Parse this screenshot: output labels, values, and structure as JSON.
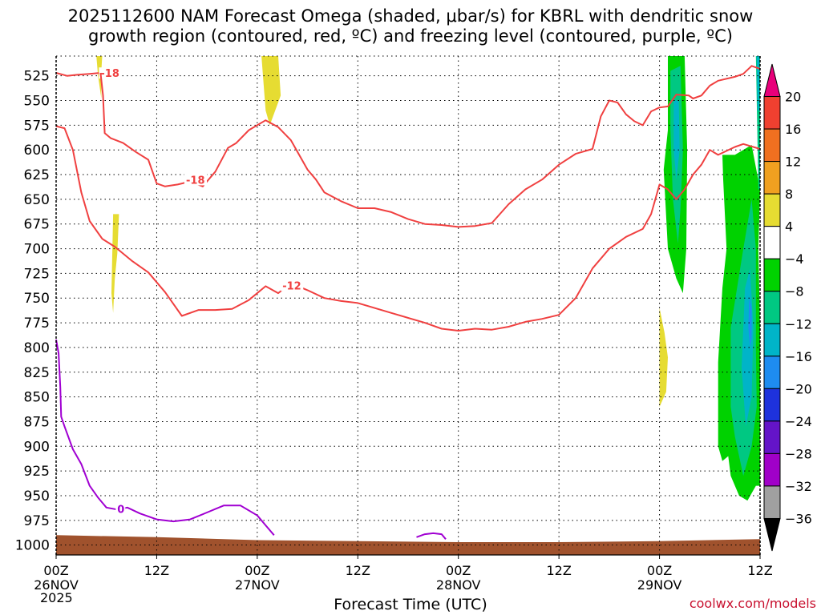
{
  "title": {
    "line1": "2025112600 NAM Forecast Omega (shaded, μbar/s) for KBRL with dendritic snow",
    "line2": "growth region (contoured, red, ºC) and freezing level (contoured, purple, ºC)"
  },
  "credit": "coolwx.com/models",
  "chart_data": {
    "type": "heatmap",
    "title": "2025112600 NAM Forecast Omega (shaded, μbar/s) for KBRL with dendritic snow growth region (contoured, red, ºC) and freezing level (contoured, purple, ºC)",
    "xlabel": "Forecast Time (UTC)",
    "year_label": "2025",
    "x_range_hours": [
      0,
      84
    ],
    "y_range_mb": [
      505,
      1010
    ],
    "y_inverted": true,
    "grid": true,
    "x_ticks": [
      {
        "hour": 0,
        "line1": "00Z",
        "line2": "26NOV"
      },
      {
        "hour": 12,
        "line1": "12Z",
        "line2": ""
      },
      {
        "hour": 24,
        "line1": "00Z",
        "line2": "27NOV"
      },
      {
        "hour": 36,
        "line1": "12Z",
        "line2": ""
      },
      {
        "hour": 48,
        "line1": "00Z",
        "line2": "28NOV"
      },
      {
        "hour": 60,
        "line1": "12Z",
        "line2": ""
      },
      {
        "hour": 72,
        "line1": "00Z",
        "line2": "29NOV"
      },
      {
        "hour": 84,
        "line1": "12Z",
        "line2": ""
      }
    ],
    "y_ticks": [
      525,
      550,
      575,
      600,
      625,
      650,
      675,
      700,
      725,
      750,
      775,
      800,
      825,
      850,
      875,
      900,
      925,
      950,
      975,
      1000
    ],
    "colorbar": {
      "labels": [
        "20",
        "16",
        "12",
        "8",
        "4",
        "−4",
        "−8",
        "−12",
        "−16",
        "−20",
        "−24",
        "−28",
        "−32",
        "−36"
      ],
      "bins": [
        {
          "label": ">20",
          "color": "#e8007a"
        },
        {
          "label": "16 to 20",
          "color": "#f04030"
        },
        {
          "label": "12 to 16",
          "color": "#f07020"
        },
        {
          "label": "8 to 12",
          "color": "#f0a020"
        },
        {
          "label": "4 to 8",
          "color": "#e6dc32"
        },
        {
          "label": "-4 to 4",
          "color": "#ffffff"
        },
        {
          "label": "-8 to -4",
          "color": "#00d200"
        },
        {
          "label": "-12 to -8",
          "color": "#00c882"
        },
        {
          "label": "-16 to -12",
          "color": "#00b4c8"
        },
        {
          "label": "-20 to -16",
          "color": "#1e8cf0"
        },
        {
          "label": "-24 to -20",
          "color": "#1e32dc"
        },
        {
          "label": "-28 to -24",
          "color": "#6414c8"
        },
        {
          "label": "-32 to -28",
          "color": "#a000c8"
        },
        {
          "label": "-36 to -32",
          "color": "#a0a0a0"
        },
        {
          "label": "<-36",
          "color": "#000000"
        }
      ]
    },
    "colors": {
      "dgz_contour": "#f04040",
      "freezing_contour": "#a000d2",
      "terrain": "#a0522d",
      "grid": "#000000"
    },
    "contours": [
      {
        "name": "dgz_upper_left",
        "level": "-18",
        "color": "red",
        "label_at": [
          5.3,
          523
        ],
        "points": [
          [
            0,
            522
          ],
          [
            1.3,
            525
          ],
          [
            2.5,
            524
          ],
          [
            4,
            523
          ],
          [
            5.3,
            522
          ]
        ]
      },
      {
        "name": "dgz_upper_main",
        "level": "-18",
        "color": "red",
        "label_at": [
          15.5,
          631
        ],
        "points": [
          [
            5.3,
            522
          ],
          [
            5.6,
            545
          ],
          [
            5.8,
            583
          ],
          [
            6.5,
            588
          ],
          [
            8,
            593
          ],
          [
            9.5,
            602
          ],
          [
            11,
            610
          ],
          [
            12,
            634
          ],
          [
            13,
            637
          ],
          [
            14.5,
            635
          ],
          [
            16,
            632
          ],
          [
            17.5,
            637
          ],
          [
            19,
            622
          ],
          [
            20.5,
            598
          ],
          [
            21.5,
            593
          ],
          [
            23,
            580
          ],
          [
            25,
            570
          ],
          [
            26.5,
            577
          ],
          [
            28,
            590
          ],
          [
            30,
            620
          ],
          [
            31,
            630
          ],
          [
            32,
            643
          ],
          [
            34,
            652
          ],
          [
            36,
            659
          ],
          [
            38,
            659
          ],
          [
            40,
            663
          ],
          [
            42,
            670
          ],
          [
            44,
            675
          ],
          [
            46,
            676
          ],
          [
            48,
            678
          ],
          [
            50,
            677
          ],
          [
            52,
            674
          ],
          [
            54,
            655
          ],
          [
            56,
            640
          ],
          [
            58,
            630
          ],
          [
            60,
            615
          ],
          [
            62,
            604
          ],
          [
            64,
            599
          ],
          [
            65,
            566
          ],
          [
            66,
            550
          ],
          [
            67,
            552
          ],
          [
            68,
            564
          ],
          [
            69,
            571
          ],
          [
            70,
            575
          ],
          [
            71,
            561
          ],
          [
            72,
            557
          ],
          [
            73,
            556
          ],
          [
            74,
            544
          ],
          [
            75.5,
            545
          ],
          [
            76,
            548
          ],
          [
            77,
            545
          ],
          [
            78,
            535
          ],
          [
            79,
            530
          ],
          [
            81,
            526
          ],
          [
            82,
            523
          ],
          [
            83,
            515
          ],
          [
            84,
            518
          ]
        ]
      },
      {
        "name": "dgz_lower",
        "level": "-12",
        "color": "red",
        "label_at": [
          27,
          738
        ],
        "points": [
          [
            0,
            576
          ],
          [
            1,
            578
          ],
          [
            2,
            600
          ],
          [
            3,
            643
          ],
          [
            4,
            672
          ],
          [
            5.5,
            690
          ],
          [
            7,
            698
          ],
          [
            9,
            712
          ],
          [
            11,
            724
          ],
          [
            13,
            744
          ],
          [
            15,
            768
          ],
          [
            17,
            762
          ],
          [
            19,
            762
          ],
          [
            21,
            761
          ],
          [
            23,
            752
          ],
          [
            25,
            738
          ],
          [
            26.5,
            745
          ],
          [
            28,
            735
          ],
          [
            30,
            742
          ],
          [
            32,
            750
          ],
          [
            34,
            753
          ],
          [
            36,
            755
          ],
          [
            40,
            765
          ],
          [
            44,
            775
          ],
          [
            46,
            781
          ],
          [
            48,
            783
          ],
          [
            50,
            781
          ],
          [
            52,
            782
          ],
          [
            54,
            779
          ],
          [
            56,
            774
          ],
          [
            58,
            771
          ],
          [
            60,
            767
          ],
          [
            62,
            750
          ],
          [
            64,
            720
          ],
          [
            66,
            700
          ],
          [
            68,
            688
          ],
          [
            70,
            680
          ],
          [
            71,
            665
          ],
          [
            72,
            635
          ],
          [
            73,
            640
          ],
          [
            74,
            650
          ],
          [
            75,
            640
          ],
          [
            76,
            625
          ],
          [
            77,
            615
          ],
          [
            78,
            600
          ],
          [
            79,
            605
          ],
          [
            81,
            597
          ],
          [
            82,
            594
          ],
          [
            84,
            599
          ]
        ]
      },
      {
        "name": "freezing_level",
        "level": "0",
        "color": "purple",
        "label_at": [
          7.3,
          964
        ],
        "points": [
          [
            0,
            792
          ],
          [
            0.3,
            806
          ],
          [
            0.5,
            840
          ],
          [
            0.6,
            870
          ],
          [
            1,
            880
          ],
          [
            2,
            903
          ],
          [
            3,
            918
          ],
          [
            4,
            940
          ],
          [
            5,
            952
          ],
          [
            6,
            962
          ],
          [
            7.3,
            964
          ],
          [
            8.5,
            962
          ],
          [
            10,
            968
          ],
          [
            12,
            974
          ],
          [
            14,
            976
          ],
          [
            16,
            974
          ],
          [
            18,
            967
          ],
          [
            20,
            960
          ],
          [
            22,
            960
          ],
          [
            24,
            970
          ],
          [
            25,
            980
          ],
          [
            26,
            990
          ]
        ]
      },
      {
        "name": "freezing_level_small",
        "level": "0",
        "color": "purple",
        "label_at": null,
        "points": [
          [
            43,
            992
          ],
          [
            44,
            989
          ],
          [
            45,
            988
          ],
          [
            46,
            989
          ],
          [
            46.5,
            994
          ]
        ]
      }
    ],
    "shaded_regions": [
      {
        "value_bin": "4 to 8",
        "points": [
          [
            4.8,
            505
          ],
          [
            5.5,
            505
          ],
          [
            5.4,
            520
          ],
          [
            5.4,
            548
          ],
          [
            5.0,
            525
          ]
        ]
      },
      {
        "value_bin": "4 to 8",
        "points": [
          [
            24.5,
            505
          ],
          [
            26.5,
            505
          ],
          [
            26.8,
            545
          ],
          [
            25.5,
            575
          ],
          [
            25.0,
            560
          ]
        ]
      },
      {
        "value_bin": "4 to 8",
        "points": [
          [
            6.8,
            665
          ],
          [
            7.5,
            665
          ],
          [
            7.3,
            705
          ],
          [
            7.0,
            730
          ],
          [
            6.8,
            765
          ],
          [
            6.6,
            745
          ]
        ]
      },
      {
        "value_bin": "4 to 8",
        "points": [
          [
            72.0,
            760
          ],
          [
            72.6,
            785
          ],
          [
            73.0,
            810
          ],
          [
            72.8,
            845
          ],
          [
            72.0,
            860
          ],
          [
            72.0,
            810
          ]
        ]
      },
      {
        "value_bin": "-8 to -4",
        "points": [
          [
            73.0,
            505
          ],
          [
            75.0,
            505
          ],
          [
            75.3,
            600
          ],
          [
            75.2,
            700
          ],
          [
            74.8,
            745
          ],
          [
            74.0,
            730
          ],
          [
            73.0,
            700
          ],
          [
            72.5,
            620
          ],
          [
            73.0,
            580
          ]
        ]
      },
      {
        "value_bin": "-8 to -4",
        "points": [
          [
            79.5,
            605
          ],
          [
            81.0,
            605
          ],
          [
            83.0,
            595
          ],
          [
            84.0,
            640
          ],
          [
            83.8,
            700
          ],
          [
            84.0,
            780
          ],
          [
            84.0,
            940
          ],
          [
            83.5,
            940
          ],
          [
            82.5,
            955
          ],
          [
            81.5,
            950
          ],
          [
            80.5,
            930
          ],
          [
            80.2,
            910
          ],
          [
            79.5,
            915
          ],
          [
            79.0,
            900
          ],
          [
            79.0,
            815
          ],
          [
            79.5,
            740
          ],
          [
            80.0,
            700
          ],
          [
            79.6,
            630
          ]
        ]
      },
      {
        "value_bin": "-12 to -8",
        "points": [
          [
            73.3,
            520
          ],
          [
            74.5,
            515
          ],
          [
            74.8,
            600
          ],
          [
            74.5,
            660
          ],
          [
            74.2,
            695
          ],
          [
            73.6,
            650
          ],
          [
            73.3,
            580
          ]
        ]
      },
      {
        "value_bin": "-12 to -8",
        "points": [
          [
            80.5,
            780
          ],
          [
            82.0,
            700
          ],
          [
            83.0,
            650
          ],
          [
            83.5,
            700
          ],
          [
            83.5,
            800
          ],
          [
            83.6,
            860
          ],
          [
            83.0,
            900
          ],
          [
            82.0,
            930
          ],
          [
            81.0,
            890
          ],
          [
            80.5,
            860
          ]
        ]
      },
      {
        "value_bin": "-12 to -8",
        "points": [
          [
            83.5,
            505
          ],
          [
            84.0,
            505
          ],
          [
            84.0,
            640
          ],
          [
            83.8,
            640
          ]
        ]
      },
      {
        "value_bin": "-16 to -12",
        "points": [
          [
            73.7,
            550
          ],
          [
            74.3,
            550
          ],
          [
            74.4,
            600
          ],
          [
            74.0,
            630
          ],
          [
            73.7,
            600
          ]
        ]
      },
      {
        "value_bin": "-16 to -12",
        "points": [
          [
            82.2,
            740
          ],
          [
            82.8,
            720
          ],
          [
            83.2,
            780
          ],
          [
            83.0,
            850
          ],
          [
            82.3,
            880
          ],
          [
            81.8,
            820
          ]
        ]
      },
      {
        "value_bin": "-16 to -12",
        "points": [
          [
            83.6,
            505
          ],
          [
            83.9,
            505
          ],
          [
            83.9,
            560
          ],
          [
            83.7,
            560
          ]
        ]
      },
      {
        "value_bin": "-20 to -16",
        "points": [
          [
            82.7,
            750
          ],
          [
            83.0,
            760
          ],
          [
            83.0,
            790
          ],
          [
            82.8,
            800
          ],
          [
            82.6,
            780
          ]
        ]
      }
    ],
    "terrain_profile_mb": [
      [
        0,
        990
      ],
      [
        12,
        992
      ],
      [
        24,
        995
      ],
      [
        36,
        996
      ],
      [
        48,
        997
      ],
      [
        60,
        997
      ],
      [
        72,
        996
      ],
      [
        84,
        994
      ]
    ]
  }
}
